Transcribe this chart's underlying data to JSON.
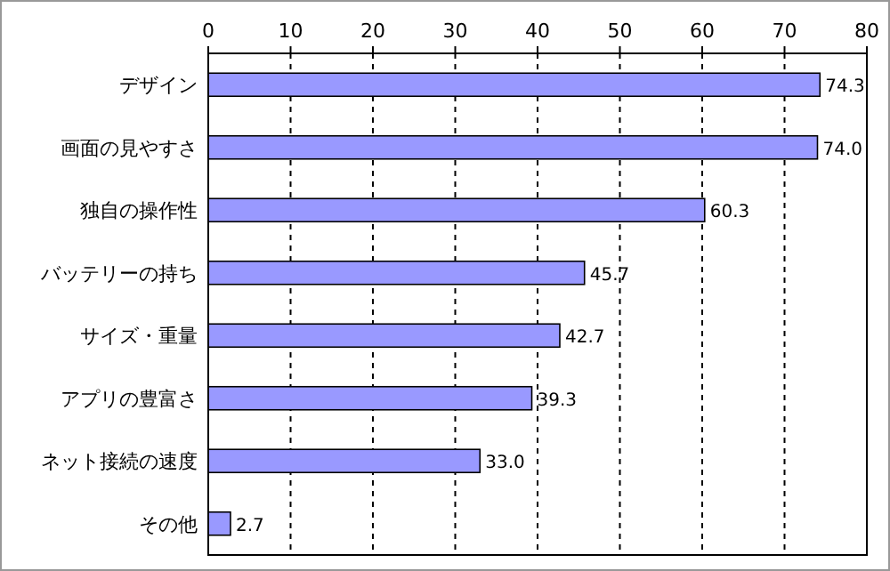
{
  "chart_data": {
    "type": "bar",
    "orientation": "horizontal",
    "categories": [
      "デザイン",
      "画面の見やすさ",
      "独自の操作性",
      "バッテリーの持ち",
      "サイズ・重量",
      "アプリの豊富さ",
      "ネット接続の速度",
      "その他"
    ],
    "values": [
      74.3,
      74.0,
      60.3,
      45.7,
      42.7,
      39.3,
      33.0,
      2.7
    ],
    "value_labels": [
      "74.3",
      "74.0",
      "60.3",
      "45.7",
      "42.7",
      "39.3",
      "33.0",
      "2.7"
    ],
    "color": "#9999ff",
    "xlim": [
      0,
      80
    ],
    "xticks": [
      0,
      10,
      20,
      30,
      40,
      50,
      60,
      70,
      80
    ],
    "grid": "x"
  }
}
